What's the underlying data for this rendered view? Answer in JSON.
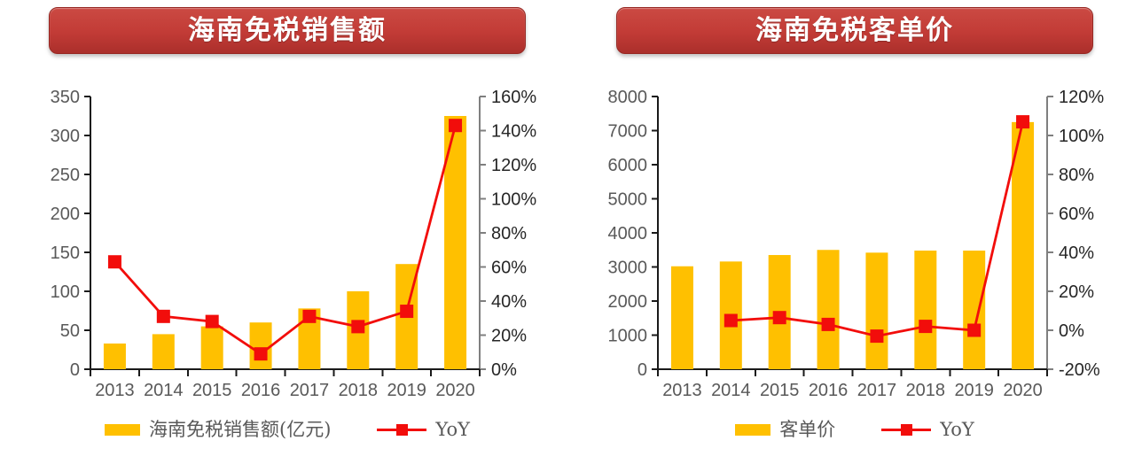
{
  "page": {
    "background": "#ffffff"
  },
  "styles": {
    "bar_color": "#FFC000",
    "line_color": "#F20D0B",
    "banner_top": "#cb4a43",
    "banner_mid": "#c23b36",
    "banner_bottom": "#ab2f2b",
    "banner_border": "#962823",
    "banner_text_color": "#ffffff",
    "left_axis_label_color": "#595959",
    "right_axis_label_color": "#262626",
    "axis_line_color": "#1a1a1a",
    "right_axis_line_color": "#7f7f7f",
    "legend_text_color": "#595959"
  },
  "charts": [
    {
      "title": "海南免税销售额",
      "chart_data": {
        "type": "bar+line",
        "categories": [
          "2013",
          "2014",
          "2015",
          "2016",
          "2017",
          "2018",
          "2019",
          "2020"
        ],
        "series": [
          {
            "name": "海南免税销售额(亿元)",
            "type": "bar",
            "axis": "left",
            "color": "#FFC000",
            "values": [
              33,
              45,
              55,
              60,
              78,
              100,
              135,
              325
            ]
          },
          {
            "name": "YoY",
            "type": "line",
            "axis": "right",
            "color": "#F20D0B",
            "unit": "%",
            "values": [
              63,
              31,
              28,
              9,
              31,
              25,
              34,
              143
            ]
          }
        ],
        "y_axis_left": {
          "min": 0,
          "max": 350,
          "step": 50,
          "suffix": ""
        },
        "y_axis_right": {
          "min": 0,
          "max": 160,
          "step": 20,
          "suffix": "%"
        },
        "grid": false,
        "legend_position": "bottom"
      }
    },
    {
      "title": "海南免税客单价",
      "chart_data": {
        "type": "bar+line",
        "categories": [
          "2013",
          "2014",
          "2015",
          "2016",
          "2017",
          "2018",
          "2019",
          "2020"
        ],
        "series": [
          {
            "name": "客单价",
            "type": "bar",
            "axis": "left",
            "color": "#FFC000",
            "values": [
              3020,
              3160,
              3350,
              3500,
              3420,
              3480,
              3480,
              7250
            ]
          },
          {
            "name": "YoY",
            "type": "line",
            "axis": "right",
            "color": "#F20D0B",
            "unit": "%",
            "values": [
              null,
              5,
              6.5,
              3,
              -3,
              2,
              0,
              107
            ]
          }
        ],
        "y_axis_left": {
          "min": 0,
          "max": 8000,
          "step": 1000,
          "suffix": ""
        },
        "y_axis_right": {
          "min": -20,
          "max": 120,
          "step": 20,
          "suffix": "%"
        },
        "grid": false,
        "legend_position": "bottom"
      }
    }
  ]
}
